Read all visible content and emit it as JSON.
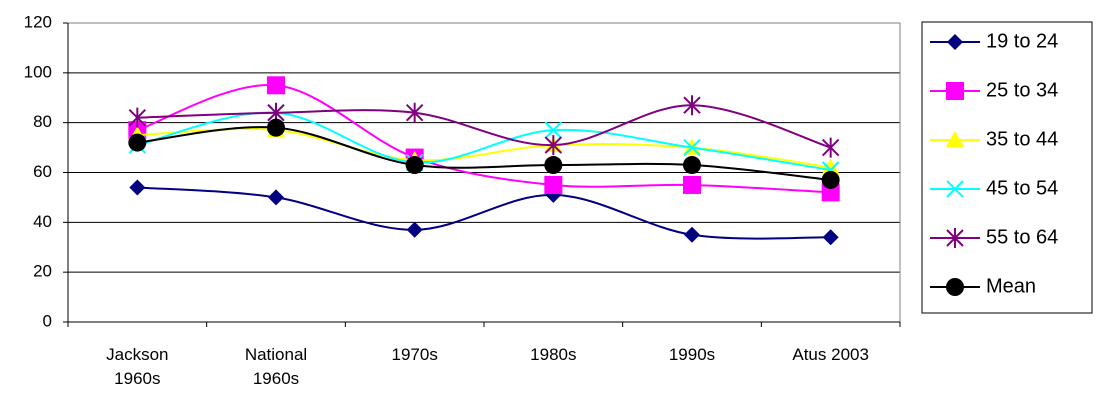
{
  "chart_data": {
    "type": "line",
    "categories": [
      "Jackson\n1960s",
      "National\n1960s",
      "1970s",
      "1980s",
      "1990s",
      "Atus 2003"
    ],
    "series": [
      {
        "name": "19 to 24",
        "color": "#000080",
        "marker": "diamond",
        "values": [
          54,
          50,
          37,
          51,
          35,
          34
        ]
      },
      {
        "name": "25 to 34",
        "color": "#ff00ff",
        "marker": "square",
        "values": [
          77,
          95,
          66,
          55,
          55,
          52
        ]
      },
      {
        "name": "35 to 44",
        "color": "#ffff00",
        "marker": "triangle",
        "values": [
          75,
          77,
          65,
          71,
          70,
          62
        ]
      },
      {
        "name": "45 to 54",
        "color": "#00ffff",
        "marker": "x",
        "values": [
          71,
          84,
          64,
          77,
          70,
          61
        ]
      },
      {
        "name": "55 to 64",
        "color": "#800080",
        "marker": "star",
        "values": [
          82,
          84,
          84,
          71,
          87,
          70
        ]
      },
      {
        "name": "Mean",
        "color": "#000000",
        "marker": "circle",
        "values": [
          72,
          78,
          63,
          63,
          63,
          57
        ]
      }
    ],
    "ylim": [
      0,
      120
    ],
    "yticks": [
      0,
      20,
      40,
      60,
      80,
      100,
      120
    ],
    "grid": true,
    "smooth": true,
    "legend": "right"
  }
}
